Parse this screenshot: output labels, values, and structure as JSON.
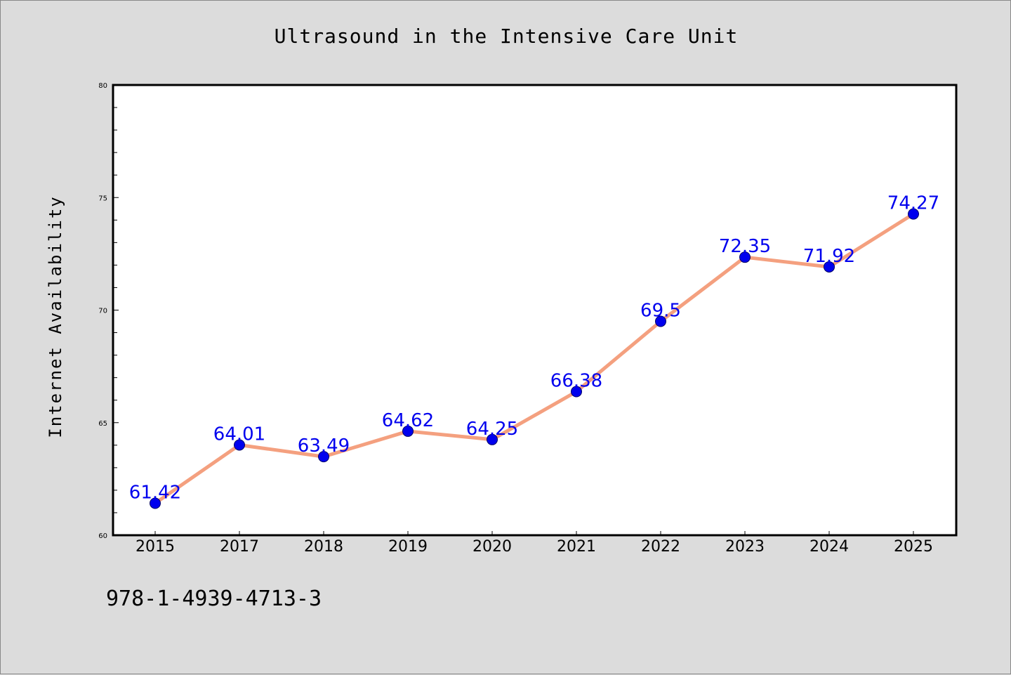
{
  "chart_data": {
    "type": "line",
    "title": "Ultrasound in the Intensive Care Unit",
    "xlabel": "",
    "ylabel": "Internet Availability",
    "categories": [
      "2015",
      "2017",
      "2018",
      "2019",
      "2020",
      "2021",
      "2022",
      "2023",
      "2024",
      "2025"
    ],
    "series": [
      {
        "values": [
          61.42,
          64.01,
          63.49,
          64.62,
          64.25,
          66.38,
          69.5,
          72.35,
          71.92,
          74.27
        ]
      }
    ],
    "data_labels": [
      "61.42",
      "64.01",
      "63.49",
      "64.62",
      "64.25",
      "66.38",
      "69.5",
      "72.35",
      "71.92",
      "74.27"
    ],
    "ylim": [
      60,
      80
    ],
    "yticks": [
      "60",
      "65",
      "70",
      "75",
      "80"
    ],
    "grid": false,
    "legend": "none"
  },
  "footer": {
    "code": "978-1-4939-4713-3"
  },
  "colors": {
    "background": "#dcdcdc",
    "plot_area": "#ffffff",
    "line": "#f4a07f",
    "marker": "#0000ee",
    "data_label": "#0000ee"
  }
}
